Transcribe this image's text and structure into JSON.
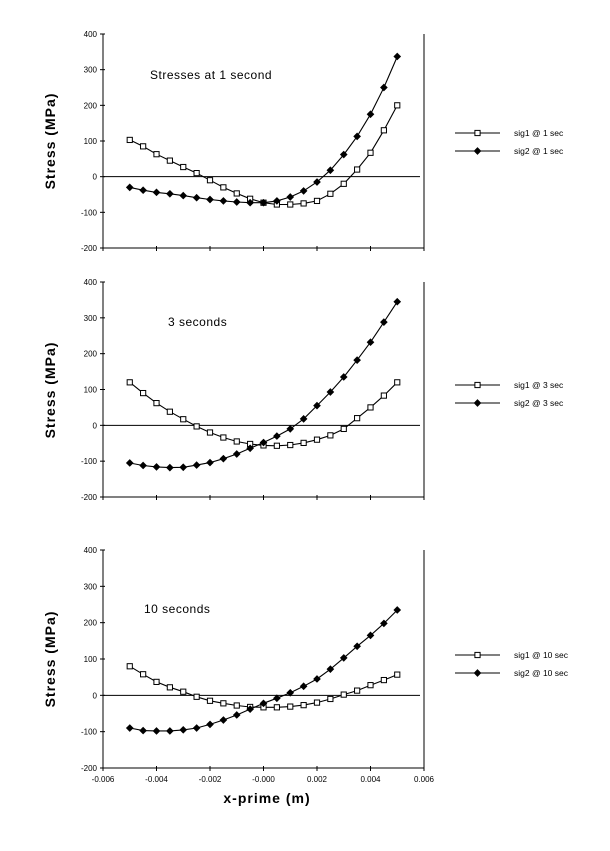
{
  "chart_data": [
    {
      "type": "line",
      "annotation": "Stresses  at  1  second",
      "ylabel": "Stress  (MPa)",
      "xlabel": "",
      "xlim": [
        -0.006,
        0.006
      ],
      "ylim": [
        -200,
        400
      ],
      "yticks": [
        -200,
        -100,
        0,
        100,
        200,
        300,
        400
      ],
      "ytick_labels": [
        "-200",
        "-100",
        "0",
        "100",
        "200",
        "300",
        "400"
      ],
      "xticks": [
        -0.006,
        -0.004,
        -0.002,
        0.0,
        0.002,
        0.004,
        0.006
      ],
      "xtick_labels": [],
      "zero_line": true,
      "x": [
        -0.005,
        -0.0045,
        -0.004,
        -0.0035,
        -0.003,
        -0.0025,
        -0.002,
        -0.0015,
        -0.001,
        -0.0005,
        0.0,
        0.0005,
        0.001,
        0.0015,
        0.002,
        0.0025,
        0.003,
        0.0035,
        0.004,
        0.0045,
        0.005
      ],
      "series": [
        {
          "name": "sig1 @ 1 sec",
          "marker": "square",
          "values": [
            103,
            85,
            63,
            45,
            27,
            10,
            -10,
            -30,
            -47,
            -62,
            -73,
            -78,
            -78,
            -75,
            -68,
            -48,
            -20,
            20,
            67,
            130,
            200
          ]
        },
        {
          "name": "sig2 @ 1 sec",
          "marker": "diamond",
          "values": [
            -30,
            -38,
            -44,
            -48,
            -53,
            -59,
            -64,
            -68,
            -71,
            -73,
            -73,
            -68,
            -57,
            -40,
            -15,
            18,
            62,
            113,
            175,
            250,
            337
          ]
        }
      ],
      "legend": [
        {
          "label": "sig1 @ 1 sec",
          "marker": "square"
        },
        {
          "label": "sig2 @ 1 sec",
          "marker": "diamond"
        }
      ]
    },
    {
      "type": "line",
      "annotation": "3  seconds",
      "ylabel": "Stress  (MPa)",
      "xlabel": "",
      "xlim": [
        -0.006,
        0.006
      ],
      "ylim": [
        -200,
        400
      ],
      "yticks": [
        -200,
        -100,
        0,
        100,
        200,
        300,
        400
      ],
      "ytick_labels": [
        "-200",
        "-100",
        "0",
        "100",
        "200",
        "300",
        "400"
      ],
      "xticks": [
        -0.006,
        -0.004,
        -0.002,
        0.0,
        0.002,
        0.004,
        0.006
      ],
      "xtick_labels": [],
      "zero_line": true,
      "x": [
        -0.005,
        -0.0045,
        -0.004,
        -0.0035,
        -0.003,
        -0.0025,
        -0.002,
        -0.0015,
        -0.001,
        -0.0005,
        0.0,
        0.0005,
        0.001,
        0.0015,
        0.002,
        0.0025,
        0.003,
        0.0035,
        0.004,
        0.0045,
        0.005
      ],
      "series": [
        {
          "name": "sig1 @ 3 sec",
          "marker": "square",
          "values": [
            120,
            90,
            62,
            38,
            17,
            -3,
            -20,
            -34,
            -45,
            -52,
            -56,
            -57,
            -55,
            -49,
            -40,
            -28,
            -10,
            20,
            50,
            83,
            120
          ]
        },
        {
          "name": "sig2 @ 3 sec",
          "marker": "diamond",
          "values": [
            -105,
            -112,
            -116,
            -118,
            -117,
            -111,
            -104,
            -93,
            -80,
            -64,
            -48,
            -30,
            -10,
            18,
            55,
            93,
            135,
            182,
            232,
            288,
            345
          ]
        }
      ],
      "legend": [
        {
          "label": "sig1 @ 3 sec",
          "marker": "square"
        },
        {
          "label": "sig2 @ 3 sec",
          "marker": "diamond"
        }
      ]
    },
    {
      "type": "line",
      "annotation": "10  seconds",
      "ylabel": "Stress  (MPa)",
      "xlabel": "x-prime    (m)",
      "xlim": [
        -0.006,
        0.006
      ],
      "ylim": [
        -200,
        400
      ],
      "yticks": [
        -200,
        -100,
        0,
        100,
        200,
        300,
        400
      ],
      "ytick_labels": [
        "-200",
        "-100",
        "0",
        "100",
        "200",
        "300",
        "400"
      ],
      "xticks": [
        -0.006,
        -0.004,
        -0.002,
        0.0,
        0.002,
        0.004,
        0.006
      ],
      "xtick_labels": [
        "-0.006",
        "-0.004",
        "-0.002",
        "-0.000",
        "0.002",
        "0.004",
        "0.006"
      ],
      "zero_line": true,
      "x": [
        -0.005,
        -0.0045,
        -0.004,
        -0.0035,
        -0.003,
        -0.0025,
        -0.002,
        -0.0015,
        -0.001,
        -0.0005,
        0.0,
        0.0005,
        0.001,
        0.0015,
        0.002,
        0.0025,
        0.003,
        0.0035,
        0.004,
        0.0045,
        0.005
      ],
      "series": [
        {
          "name": "sig1 @ 10 sec",
          "marker": "square",
          "values": [
            80,
            58,
            37,
            22,
            10,
            -4,
            -15,
            -22,
            -28,
            -32,
            -33,
            -33,
            -31,
            -27,
            -20,
            -10,
            2,
            13,
            28,
            42,
            57
          ]
        },
        {
          "name": "sig2 @ 10 sec",
          "marker": "diamond",
          "values": [
            -90,
            -97,
            -98,
            -98,
            -95,
            -90,
            -80,
            -68,
            -54,
            -38,
            -22,
            -8,
            7,
            25,
            45,
            72,
            103,
            135,
            165,
            198,
            235
          ]
        }
      ],
      "legend": [
        {
          "label": "sig1 @ 10 sec",
          "marker": "square"
        },
        {
          "label": "sig2 @ 10 sec",
          "marker": "diamond"
        }
      ]
    }
  ]
}
